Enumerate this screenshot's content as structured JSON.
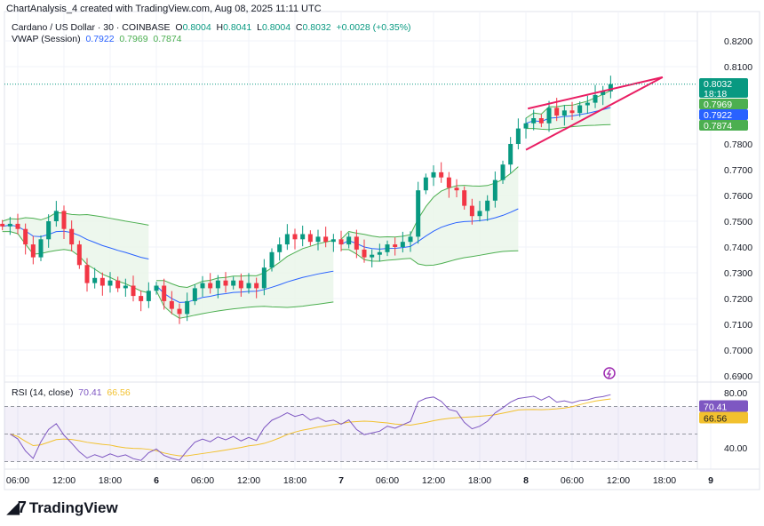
{
  "header": {
    "title": "ChartAnalysis_4 created with TradingView.com, Aug 08, 2025 11:11 UTC"
  },
  "legend": {
    "symbol": "Cardano / US Dollar · 30 · COINBASE",
    "o_label": "O",
    "o": "0.8004",
    "h_label": "H",
    "h": "0.8041",
    "l_label": "L",
    "l": "0.8004",
    "c_label": "C",
    "c": "0.8032",
    "change": "+0.0028 (+0.35%)",
    "vwap_label": "VWAP (Session)",
    "vwap": "0.7922",
    "vwap_upper": "0.7969",
    "vwap_lower": "0.7874",
    "rsi_label": "RSI (14, close)",
    "rsi": "70.41",
    "rsi_ma": "66.56"
  },
  "price_badges": {
    "last": "0.8032",
    "countdown": "18:18",
    "upper": "0.7969",
    "vwap": "0.7922",
    "lower": "0.7874"
  },
  "colors": {
    "up": "#089981",
    "down": "#f23645",
    "vwap": "#2962ff",
    "band": "#4caf50",
    "band_fill": "#e8f5e9",
    "rsi": "#7e57c2",
    "rsi_ma": "#f2c12e",
    "wedge": "#e91e63",
    "last_price": "#089981"
  },
  "logo": {
    "text": "TradingView"
  },
  "chart_data": {
    "type": "candlestick",
    "symbol": "ADA/USD",
    "price_axis": {
      "ticks": [
        "0.8200",
        "0.8100",
        "0.7800",
        "0.7700",
        "0.7600",
        "0.7500",
        "0.7400",
        "0.7300",
        "0.7200",
        "0.7100",
        "0.7000",
        "0.6900"
      ],
      "range": [
        0.69,
        0.82
      ]
    },
    "time_axis": {
      "ticks": [
        "06:00",
        "12:00",
        "18:00",
        "6",
        "06:00",
        "12:00",
        "18:00",
        "7",
        "06:00",
        "12:00",
        "18:00",
        "8",
        "06:00",
        "12:00",
        "18:00",
        "9"
      ]
    },
    "start": "Aug 05 04:00",
    "closes": [
      0.748,
      0.749,
      0.747,
      0.741,
      0.736,
      0.743,
      0.75,
      0.754,
      0.747,
      0.741,
      0.733,
      0.726,
      0.728,
      0.725,
      0.727,
      0.724,
      0.725,
      0.721,
      0.719,
      0.723,
      0.725,
      0.719,
      0.716,
      0.714,
      0.719,
      0.724,
      0.726,
      0.724,
      0.727,
      0.725,
      0.727,
      0.724,
      0.726,
      0.724,
      0.732,
      0.738,
      0.741,
      0.745,
      0.743,
      0.745,
      0.742,
      0.744,
      0.742,
      0.743,
      0.741,
      0.744,
      0.739,
      0.736,
      0.737,
      0.738,
      0.741,
      0.74,
      0.742,
      0.744,
      0.762,
      0.767,
      0.769,
      0.767,
      0.763,
      0.762,
      0.756,
      0.752,
      0.754,
      0.758,
      0.766,
      0.772,
      0.78,
      0.786,
      0.788,
      0.79,
      0.788,
      0.794,
      0.791,
      0.793,
      0.792,
      0.795,
      0.796,
      0.799,
      0.8004,
      0.8032
    ],
    "wedge": {
      "upper": [
        [
          "Aug 08 00:15",
          0.7937
        ],
        [
          "Aug 08 17:45",
          0.8059
        ]
      ],
      "lower": [
        [
          "Aug 08 00:00",
          0.7777
        ],
        [
          "Aug 08 17:45",
          0.8059
        ]
      ]
    },
    "rsi_axis": {
      "ticks": [
        "80.00",
        "40.00"
      ],
      "bands": [
        70,
        50,
        30
      ]
    }
  }
}
